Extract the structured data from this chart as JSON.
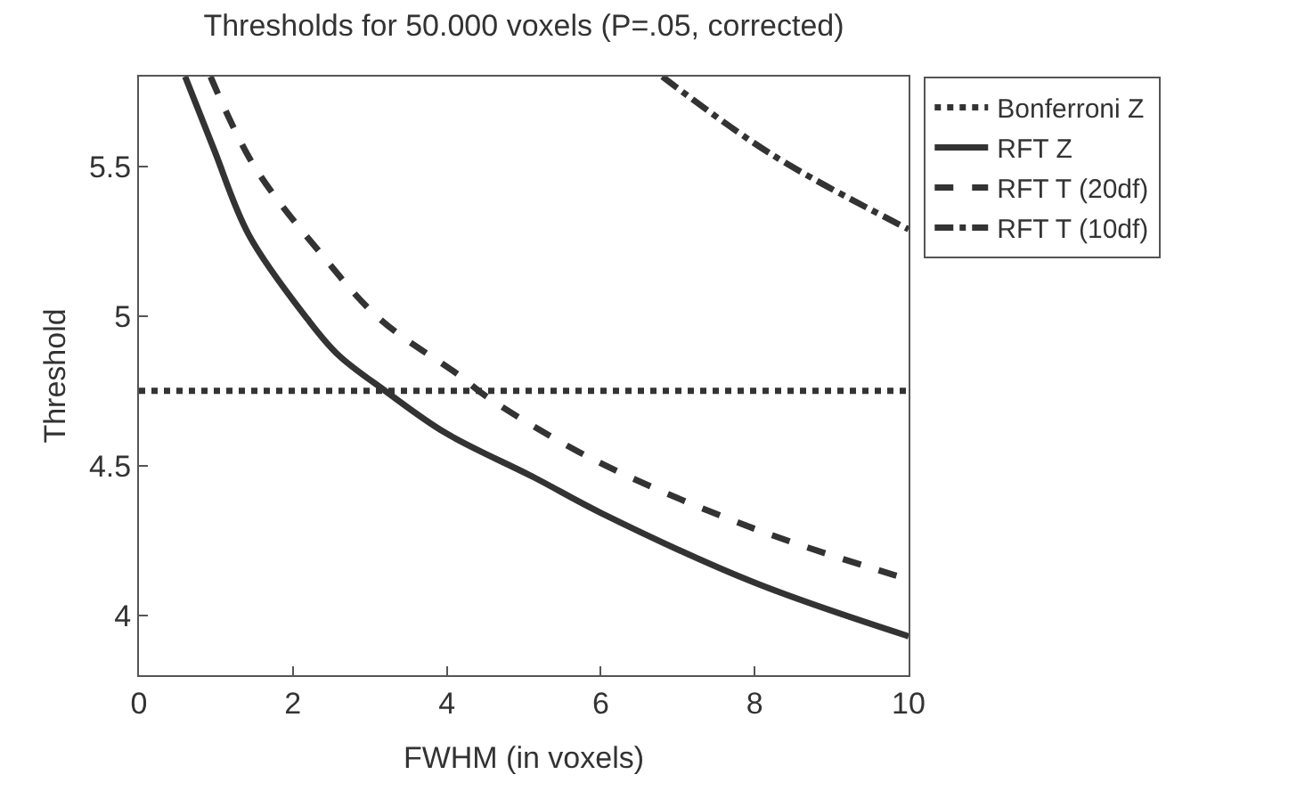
{
  "chart_data": {
    "type": "line",
    "title": "Thresholds for 50.000 voxels (P=.05, corrected)",
    "xlabel": "FWHM (in voxels)",
    "ylabel": "Threshold",
    "xlim": [
      0,
      10
    ],
    "xticks": [
      0,
      2,
      4,
      6,
      8,
      10
    ],
    "ylim": [
      3.8,
      5.8
    ],
    "yticks": [
      4,
      4.5,
      5,
      5.5
    ],
    "legend": "top right",
    "marker": "none",
    "series": [
      {
        "name": "Bonferroni Z",
        "color": "#333333",
        "line_style": "dotted",
        "x": [
          0,
          10
        ],
        "values": [
          4.75,
          4.75
        ]
      },
      {
        "name": "RFT Z",
        "color": "#333333",
        "line_style": "solid",
        "x": [
          0.6,
          0.97,
          1.43,
          2.19,
          2.59,
          3.2,
          3.98,
          5.14,
          6.02,
          7.99,
          10
        ],
        "values": [
          5.8,
          5.56,
          5.27,
          4.99,
          4.87,
          4.75,
          4.61,
          4.46,
          4.34,
          4.11,
          3.93
        ]
      },
      {
        "name": "RFT T (20df)",
        "color": "#333333",
        "line_style": "dashed",
        "x": [
          0.93,
          1.5,
          2.36,
          3.13,
          4.17,
          4.52,
          5.91,
          7.99,
          10
        ],
        "values": [
          5.8,
          5.5,
          5.21,
          4.99,
          4.8,
          4.73,
          4.52,
          4.29,
          4.12
        ]
      },
      {
        "name": "RFT T (10df)",
        "color": "#333333",
        "line_style": "dashdot",
        "x": [
          6.8,
          8.22,
          10
        ],
        "values": [
          5.8,
          5.54,
          5.29
        ]
      }
    ]
  }
}
